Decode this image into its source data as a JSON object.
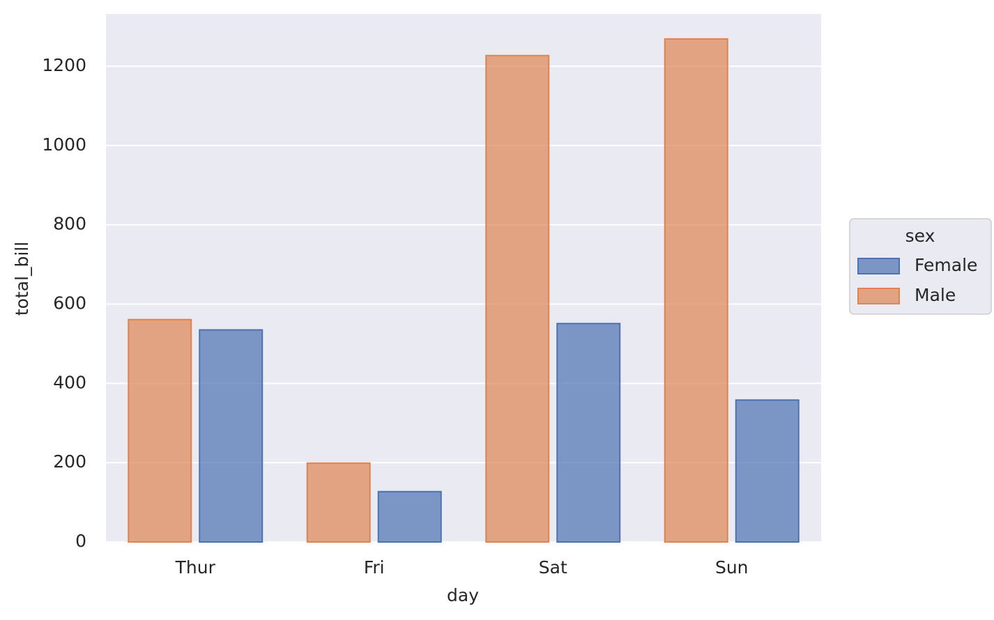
{
  "chart_data": {
    "type": "bar",
    "x_label": "day",
    "y_label": "total_bill",
    "categories": [
      "Thur",
      "Fri",
      "Sat",
      "Sun"
    ],
    "series": [
      {
        "name": "Female",
        "color": "#4c72b0",
        "values": [
          535,
          127,
          551,
          358
        ]
      },
      {
        "name": "Male",
        "color": "#dd8452",
        "values": [
          561,
          199,
          1227,
          1269
        ]
      }
    ],
    "legend_title": "sex",
    "legend_position": "right",
    "ylim": [
      0,
      1332
    ],
    "yticks": [
      0,
      200,
      400,
      600,
      800,
      1000,
      1200
    ],
    "grid": true
  }
}
